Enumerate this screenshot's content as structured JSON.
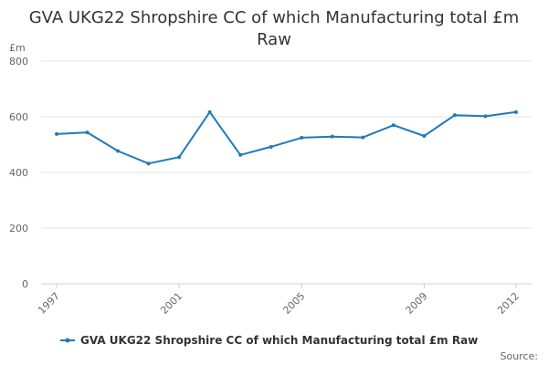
{
  "chart_data": {
    "type": "line",
    "title": "GVA UKG22 Shropshire CC of which Manufacturing total £m Raw",
    "ylabel": "£m",
    "xlabel": "",
    "ylim": [
      0,
      800
    ],
    "yticks": [
      0,
      200,
      400,
      600,
      800
    ],
    "x": [
      1997,
      1998,
      1999,
      2000,
      2001,
      2002,
      2003,
      2004,
      2005,
      2006,
      2007,
      2008,
      2009,
      2010,
      2011,
      2012
    ],
    "xtick_labels": [
      "1997",
      "2001",
      "2005",
      "2009",
      "2012"
    ],
    "series": [
      {
        "name": "GVA UKG22 Shropshire CC of which Manufacturing total £m Raw",
        "color": "#1f7bb6",
        "values": [
          538,
          544,
          477,
          432,
          455,
          617,
          463,
          492,
          525,
          529,
          526,
          570,
          531,
          606,
          602,
          617
        ]
      }
    ],
    "grid": true,
    "legend_position": "bottom-center",
    "source_text": "Source:"
  }
}
